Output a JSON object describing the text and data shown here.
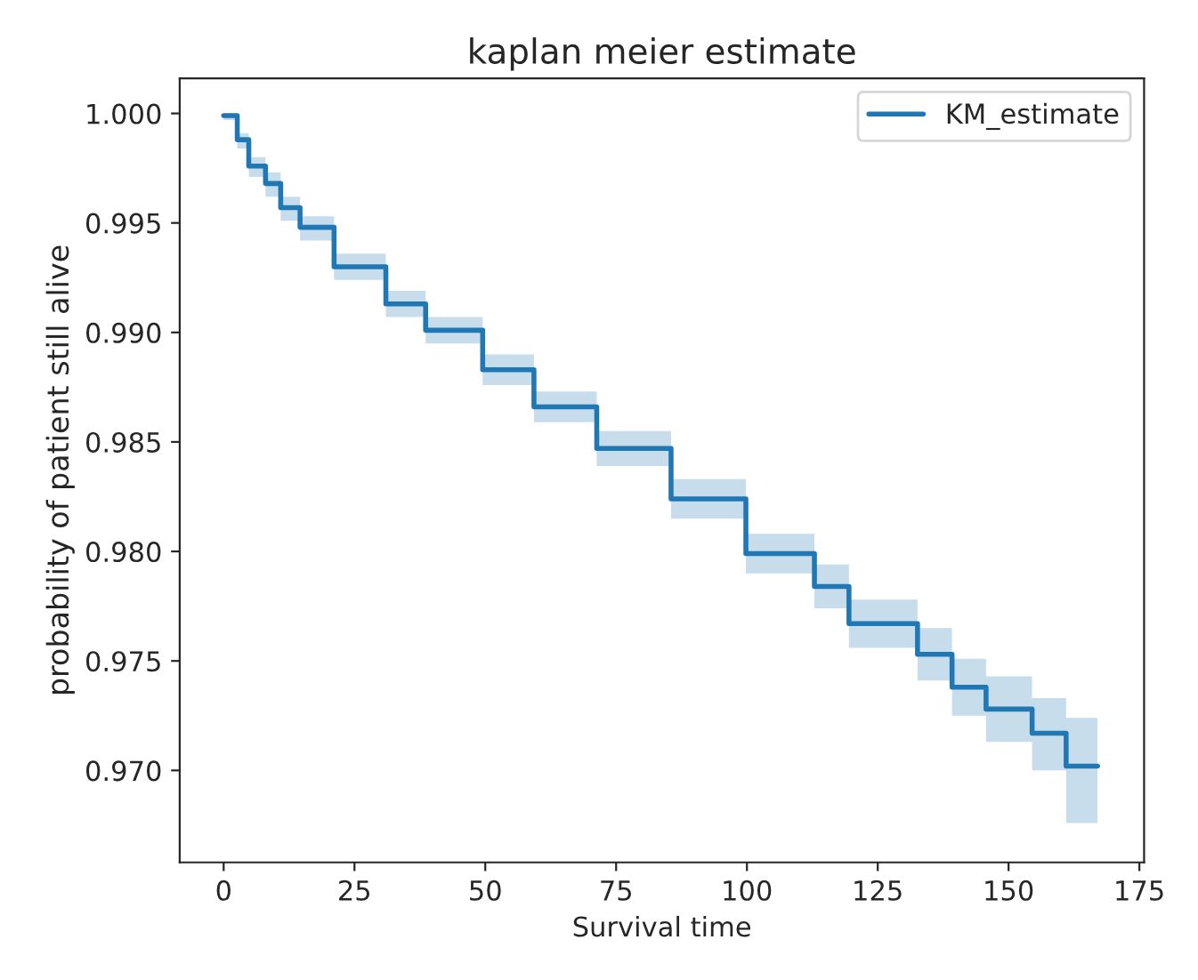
{
  "chart_data": {
    "type": "step",
    "title": "kaplan meier estimate",
    "xlabel": "Survival time",
    "ylabel": "probability of patient still alive",
    "series": [
      {
        "name": "KM_estimate",
        "color": "#1f77b4",
        "x": [
          0,
          2.6,
          4.8,
          8,
          10.9,
          14.6,
          21.1,
          31,
          38.6,
          49.5,
          59.3,
          71.3,
          85.5,
          99.8,
          112.9,
          119.5,
          132.6,
          139.2,
          145.7,
          154.5,
          161,
          167
        ],
        "values": [
          0.9999,
          0.9988,
          0.9976,
          0.9968,
          0.9957,
          0.9948,
          0.993,
          0.9913,
          0.9901,
          0.9883,
          0.9866,
          0.9847,
          0.9824,
          0.9799,
          0.9784,
          0.9767,
          0.9753,
          0.9738,
          0.9728,
          0.9717,
          0.9702,
          0.9702
        ],
        "lower": [
          0.9997,
          0.9984,
          0.9971,
          0.9962,
          0.9951,
          0.9942,
          0.9924,
          0.9907,
          0.9895,
          0.9876,
          0.9859,
          0.9839,
          0.9815,
          0.979,
          0.9774,
          0.9756,
          0.9741,
          0.9725,
          0.9713,
          0.97,
          0.9676,
          0.9676
        ],
        "upper": [
          1.0,
          0.9991,
          0.998,
          0.9973,
          0.9962,
          0.9953,
          0.9936,
          0.9919,
          0.9907,
          0.989,
          0.9873,
          0.9855,
          0.9833,
          0.9808,
          0.9794,
          0.9778,
          0.9765,
          0.9751,
          0.9743,
          0.9733,
          0.9724,
          0.9724
        ]
      }
    ],
    "xlim": [
      -8.4,
      175.9
    ],
    "xticks": [
      0,
      25,
      50,
      75,
      100,
      125,
      150,
      175
    ],
    "ylim": [
      0.9658,
      1.0016
    ],
    "yticks": [
      {
        "value": 0.97,
        "label": "0.970"
      },
      {
        "value": 0.975,
        "label": "0.975"
      },
      {
        "value": 0.98,
        "label": "0.980"
      },
      {
        "value": 0.985,
        "label": "0.985"
      },
      {
        "value": 0.99,
        "label": "0.990"
      },
      {
        "value": 0.995,
        "label": "0.995"
      },
      {
        "value": 1.0,
        "label": "1.000"
      }
    ],
    "legend": "top right",
    "grid": false,
    "line_style": "solid"
  }
}
